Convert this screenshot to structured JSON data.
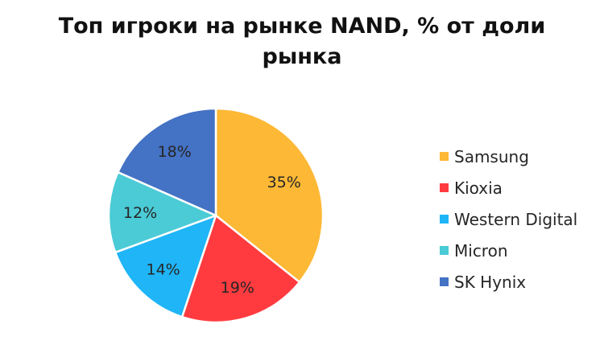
{
  "chart_data": {
    "type": "pie",
    "title_lines": [
      "Топ игроки на рынке NAND, % от доли",
      "рынка"
    ],
    "slices": [
      {
        "label": "Samsung",
        "value": 35,
        "value_label": "35%",
        "color": "#FDB835"
      },
      {
        "label": "Kioxia",
        "value": 19,
        "value_label": "19%",
        "color": "#FF3B3F"
      },
      {
        "label": "Western Digital",
        "value": 14,
        "value_label": "14%",
        "color": "#1FB5F7"
      },
      {
        "label": "Micron",
        "value": 12,
        "value_label": "12%",
        "color": "#4ACBD6"
      },
      {
        "label": "SK Hynix",
        "value": 18,
        "value_label": "18%",
        "color": "#4472C4"
      }
    ],
    "legend_position": "right"
  }
}
